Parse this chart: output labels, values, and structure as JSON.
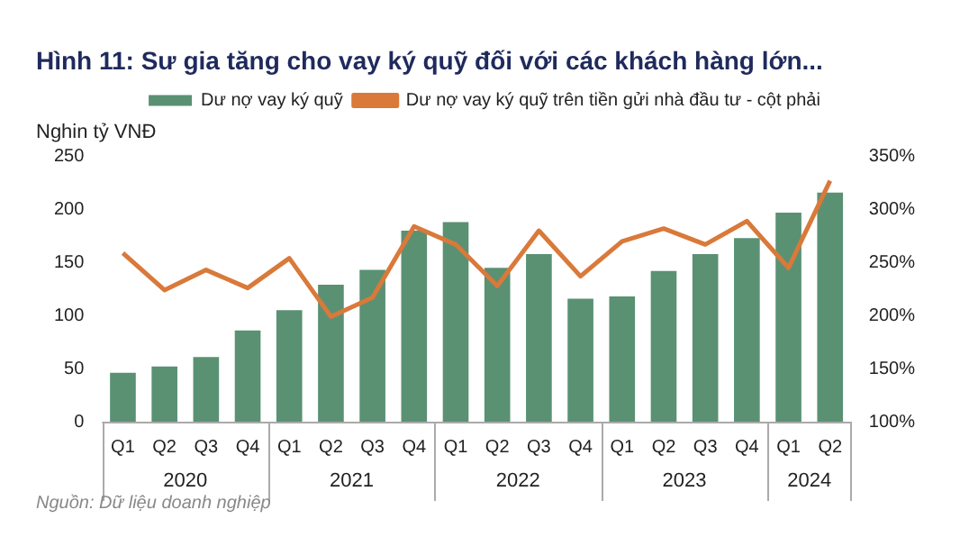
{
  "chart_data": {
    "type": "bar",
    "title": "Hình 11: Sư gia tăng cho vay ký quỹ đối với các khách hàng lớn...",
    "ylabel": "Nghin tỷ VNĐ",
    "categories": [
      "Q1",
      "Q2",
      "Q3",
      "Q4",
      "Q1",
      "Q2",
      "Q3",
      "Q4",
      "Q1",
      "Q2",
      "Q3",
      "Q4",
      "Q1",
      "Q2",
      "Q3",
      "Q4",
      "Q1",
      "Q2"
    ],
    "series": [
      {
        "name": "Dư nợ vay ký quỹ",
        "color": "#5a9173",
        "values": [
          46,
          52,
          61,
          86,
          105,
          129,
          143,
          180,
          188,
          145,
          158,
          116,
          118,
          142,
          158,
          173,
          197,
          216
        ]
      },
      {
        "name": "Dư nợ vay ký quỹ trên tiền gửi nhà đầu tư - cột phải",
        "type": "line",
        "axis": "y2",
        "color": "#d9793a",
        "values": [
          259,
          224,
          243,
          226,
          254,
          199,
          217,
          284,
          267,
          228,
          280,
          237,
          270,
          282,
          267,
          289,
          245,
          327
        ]
      }
    ],
    "ylim": [
      0,
      250
    ],
    "yticks": [
      0,
      50,
      100,
      150,
      200,
      250
    ],
    "y2lim": [
      100,
      350
    ],
    "y2ticks": [
      {
        "value": 100,
        "label": "100%"
      },
      {
        "value": 150,
        "label": "150%"
      },
      {
        "value": 200,
        "label": "200%"
      },
      {
        "value": 250,
        "label": "250%"
      },
      {
        "value": 300,
        "label": "300%"
      },
      {
        "value": 350,
        "label": "350%"
      }
    ],
    "annotations": [
      "2020",
      "2021",
      "2022",
      "2023",
      "2024",
      "Nguồn: Dữ liệu doanh nghiệp"
    ],
    "grid": false,
    "legend": "top",
    "marker": "none",
    "line_style": "solid"
  }
}
